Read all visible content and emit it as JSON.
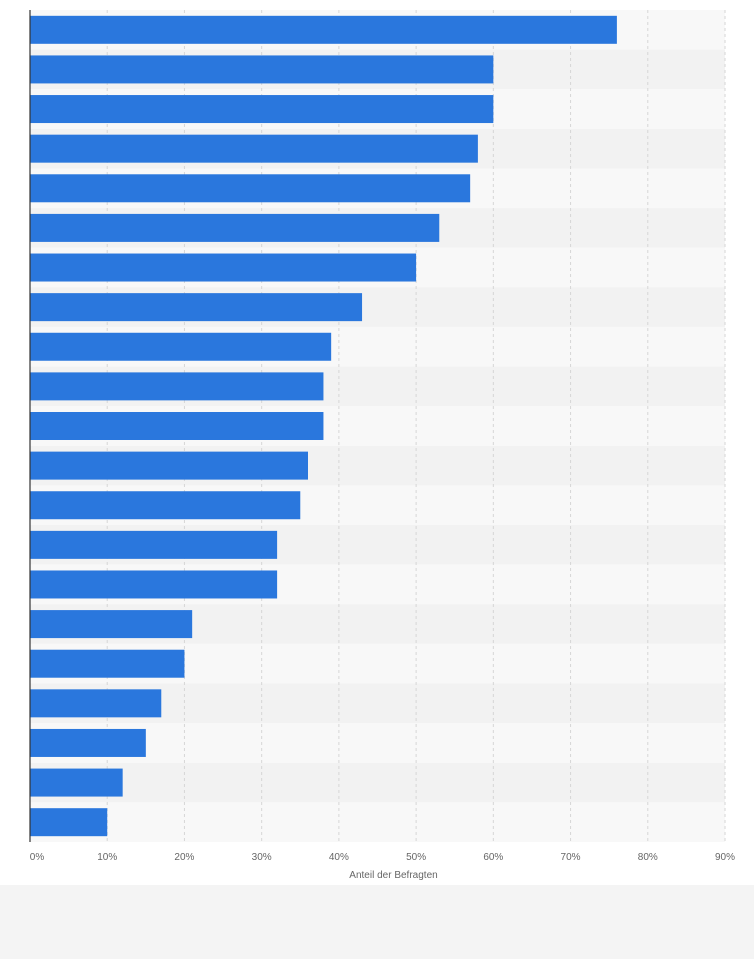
{
  "chart_data": {
    "type": "bar",
    "orientation": "horizontal",
    "xlabel": "Anteil der Befragten",
    "ylabel": "",
    "xlim": [
      0,
      90
    ],
    "xticks": [
      "0%",
      "10%",
      "20%",
      "30%",
      "40%",
      "50%",
      "60%",
      "70%",
      "80%",
      "90%"
    ],
    "grid": true,
    "values": [
      76,
      60,
      60,
      58,
      57,
      53,
      50,
      43,
      39,
      38,
      38,
      36,
      35,
      32,
      32,
      21,
      20,
      17,
      15,
      12,
      10
    ],
    "colors": {
      "bar": "#2a77dd",
      "band_light": "#f8f8f8",
      "band_dark": "#f2f2f2",
      "grid": "#d6d6d6",
      "axis": "#333333"
    }
  }
}
